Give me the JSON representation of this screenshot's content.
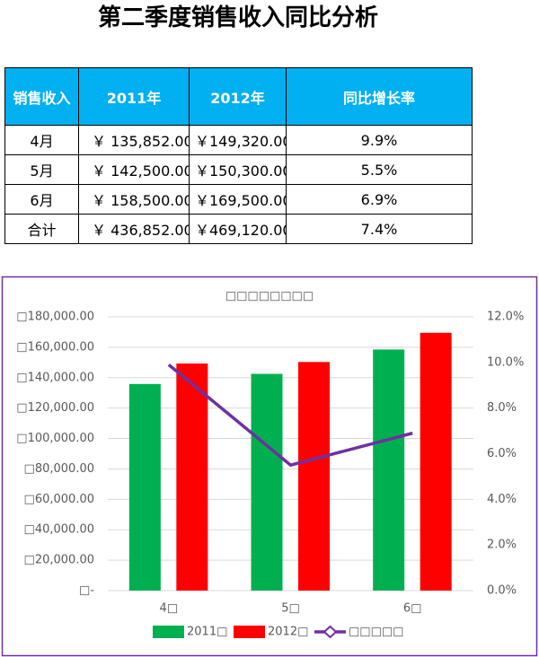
{
  "header": {
    "title": "第二季度销售收入同比分析"
  },
  "table": {
    "header": [
      "销售收入",
      "2011年",
      "2012年",
      "同比增长率"
    ],
    "rows": [
      [
        "4月",
        "￥ 135,852.00",
        "￥149,320.00",
        "9.9%"
      ],
      [
        "5月",
        "￥ 142,500.00",
        "￥150,300.00",
        "5.5%"
      ],
      [
        "6月",
        "￥ 158,500.00",
        "￥169,500.00",
        "6.9%"
      ],
      [
        "合计",
        "￥ 436,852.00",
        "￥469,120.00",
        "7.4%"
      ]
    ]
  },
  "chart_data": {
    "type": "bar",
    "title": "□□□□□□□□",
    "categories": [
      "4□",
      "5□",
      "6□"
    ],
    "series": [
      {
        "name": "2011□",
        "color": "#00b050",
        "values": [
          135852,
          142500,
          158500
        ]
      },
      {
        "name": "2012□",
        "color": "#ff0000",
        "values": [
          149320,
          150300,
          169500
        ]
      },
      {
        "name": "□□□□□",
        "color": "#7030a0",
        "type": "line",
        "axis": "y2",
        "values": [
          9.9,
          5.5,
          6.9
        ]
      }
    ],
    "ylim": [
      0,
      180000
    ],
    "yticks": [
      {
        "value": 0,
        "label": "□-"
      },
      {
        "value": 20000,
        "label": "□20,000.00"
      },
      {
        "value": 40000,
        "label": "□40,000.00"
      },
      {
        "value": 60000,
        "label": "□60,000.00"
      },
      {
        "value": 80000,
        "label": "□80,000.00"
      },
      {
        "value": 100000,
        "label": "□100,000.00"
      },
      {
        "value": 120000,
        "label": "□120,000.00"
      },
      {
        "value": 140000,
        "label": "□140,000.00"
      },
      {
        "value": 160000,
        "label": "□160,000.00"
      },
      {
        "value": 180000,
        "label": "□180,000.00"
      }
    ],
    "y2lim": [
      0,
      12
    ],
    "y2ticks": [
      {
        "value": 0,
        "label": "0.0%"
      },
      {
        "value": 2,
        "label": "2.0%"
      },
      {
        "value": 4,
        "label": "4.0%"
      },
      {
        "value": 6,
        "label": "6.0%"
      },
      {
        "value": 8,
        "label": "8.0%"
      },
      {
        "value": 10,
        "label": "10.0%"
      },
      {
        "value": 12,
        "label": "12.0%"
      }
    ],
    "grid": true,
    "legend": "bottom"
  }
}
